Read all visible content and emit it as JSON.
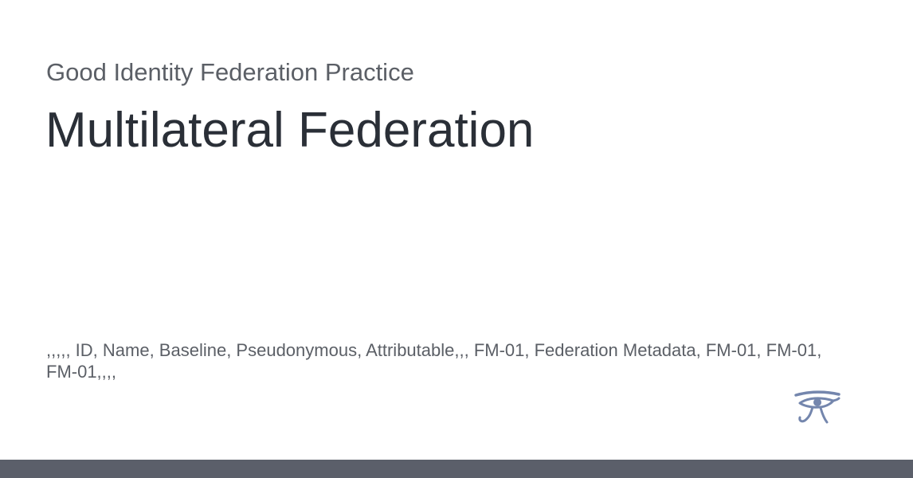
{
  "card": {
    "site_name": "Good Identity Federation Practice",
    "title": "Multilateral Federation",
    "excerpt": ",,,,, ID, Name, Baseline, Pseudonymous, Attributable,,, FM-01, Federation Metadata, FM-01, FM-01, FM-01,,,,"
  },
  "logo": {
    "icon": "eye-of-horus-icon",
    "color": "#7486ad"
  },
  "footer": {
    "color": "#5b5f6a"
  }
}
